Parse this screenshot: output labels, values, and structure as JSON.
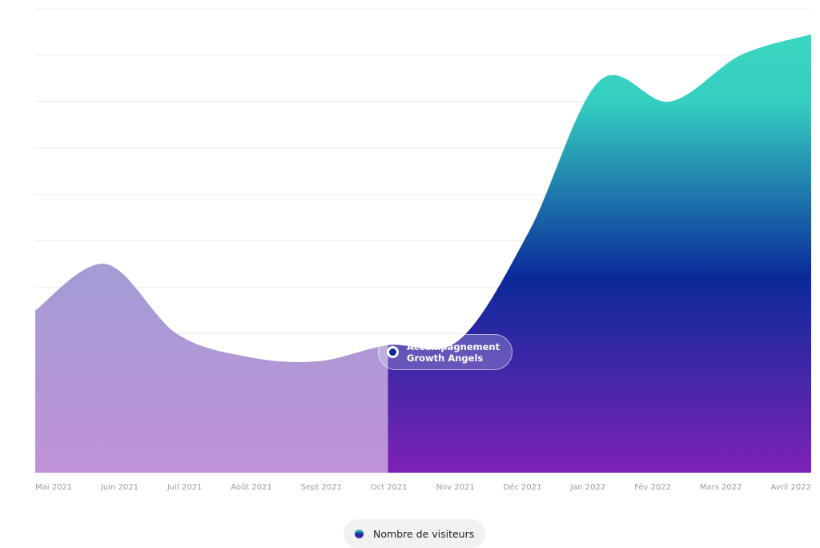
{
  "chart_data": {
    "type": "area",
    "categories": [
      "Mai 2021",
      "Juin 2021",
      "Juil 2021",
      "Août 2021",
      "Sept 2021",
      "Oct 2021",
      "Nov 2021",
      "Déc 2021",
      "Jan 2022",
      "Fév 2022",
      "Mars 2022",
      "Avril 2022"
    ],
    "series": [
      {
        "name": "Nombre de visiteurs",
        "color": "#0a2a9a",
        "values": [
          3.5,
          4.5,
          3.0,
          2.5,
          2.4,
          2.75,
          2.85,
          5.2,
          8.45,
          8.0,
          9.0,
          9.45
        ]
      }
    ],
    "ylim": [
      0,
      10
    ],
    "yticks": [
      1,
      2,
      3,
      4,
      5,
      6,
      7,
      8,
      9,
      10
    ],
    "ytick_labels": false,
    "grid": true,
    "highlight_start": 5,
    "annotation": [
      "Accompagnement",
      "Growth Angels"
    ]
  }
}
